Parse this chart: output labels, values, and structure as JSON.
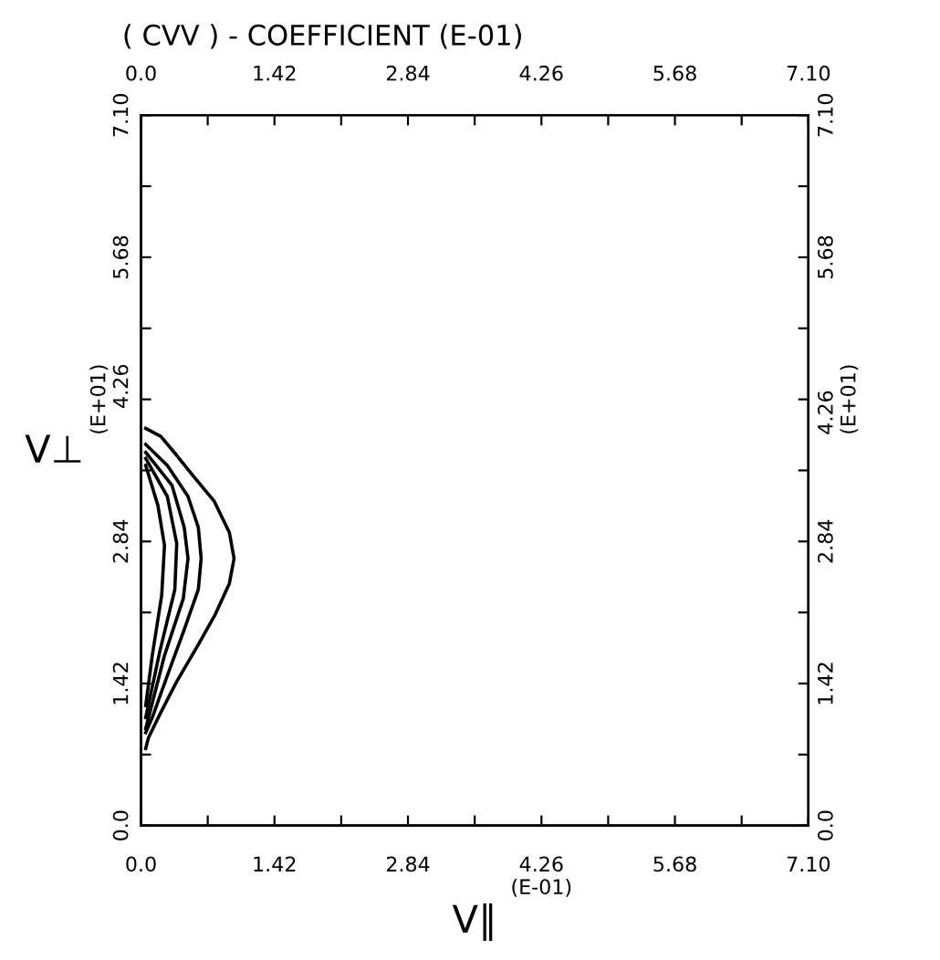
{
  "chart_data": {
    "type": "line",
    "title": "( CVV ) - COEFFICIENT (E-01)",
    "xlabel": "V∥",
    "ylabel": "V⊥",
    "xlim": [
      0,
      7.1
    ],
    "ylim": [
      0,
      7.1
    ],
    "x2lim": [
      0,
      7.1
    ],
    "y2lim": [
      0,
      7.1
    ],
    "xticks": [
      {
        "value": 0,
        "label": "0.0"
      },
      {
        "value": 0.71,
        "label": null
      },
      1.42,
      {
        "value": 2.13,
        "label": null
      },
      2.84,
      {
        "value": 3.55,
        "label": null
      },
      {
        "value": 4.26,
        "label": "4.26\n(E-01)"
      },
      {
        "value": 4.97,
        "label": null
      },
      5.68,
      {
        "value": 6.39,
        "label": null
      },
      {
        "value": 7.1,
        "label": "7.10"
      }
    ],
    "x2ticks": [
      {
        "value": 0,
        "label": "0.0"
      },
      {
        "value": 0.71,
        "label": null
      },
      1.42,
      {
        "value": 2.13,
        "label": null
      },
      2.84,
      {
        "value": 3.55,
        "label": null
      },
      4.26,
      {
        "value": 4.97,
        "label": null
      },
      5.68,
      {
        "value": 6.39,
        "label": null
      },
      {
        "value": 7.1,
        "label": "7.10"
      }
    ],
    "yticks": [
      {
        "value": 0,
        "label": "0.0"
      },
      {
        "value": 0.71,
        "label": null
      },
      1.42,
      {
        "value": 2.13,
        "label": null
      },
      2.84,
      {
        "value": 3.55,
        "label": null
      },
      {
        "value": 4.26,
        "label": "(E+01)\n4.26"
      },
      {
        "value": 4.97,
        "label": null
      },
      5.68,
      {
        "value": 6.39,
        "label": null
      },
      {
        "value": 7.1,
        "label": "7.10"
      }
    ],
    "y2ticks": [
      {
        "value": 0,
        "label": "0.0"
      },
      {
        "value": 0.71,
        "label": null
      },
      1.42,
      {
        "value": 2.13,
        "label": null
      },
      2.84,
      {
        "value": 3.55,
        "label": null
      },
      {
        "value": 4.26,
        "label": "4.26\n(E+01)"
      },
      {
        "value": 4.97,
        "label": null
      },
      5.68,
      {
        "value": 6.39,
        "label": null
      },
      {
        "value": 7.1,
        "label": "7.10"
      }
    ],
    "grid": false,
    "marker": "none",
    "line_style": "solid",
    "series": [
      {
        "color": "#000000",
        "x": [
          0.05,
          0.21,
          0.38,
          0.55,
          0.78,
          0.94,
          0.99,
          0.94,
          0.79,
          0.61,
          0.38,
          0.21,
          0.08,
          0.05
        ],
        "values": [
          3.97,
          3.89,
          3.7,
          3.5,
          3.24,
          2.93,
          2.67,
          2.42,
          2.11,
          1.81,
          1.44,
          1.13,
          0.88,
          0.77
        ]
      },
      {
        "color": "#000000",
        "x": [
          0.05,
          0.28,
          0.5,
          0.61,
          0.64,
          0.61,
          0.46,
          0.28,
          0.12,
          0.05
        ],
        "values": [
          3.81,
          3.6,
          3.29,
          2.98,
          2.67,
          2.36,
          1.96,
          1.5,
          1.08,
          0.93
        ]
      },
      {
        "color": "#000000",
        "x": [
          0.05,
          0.33,
          0.46,
          0.5,
          0.45,
          0.25,
          0.05
        ],
        "values": [
          3.73,
          3.4,
          2.98,
          2.67,
          2.27,
          1.7,
          0.97
        ]
      },
      {
        "color": "#000000",
        "x": [
          0.05,
          0.28,
          0.38,
          0.36,
          0.2,
          0.05
        ],
        "values": [
          3.67,
          3.29,
          2.82,
          2.36,
          1.74,
          1.08
        ]
      },
      {
        "color": "#000000",
        "x": [
          0.05,
          0.18,
          0.25,
          0.22,
          0.12,
          0.05
        ],
        "values": [
          3.6,
          3.2,
          2.8,
          2.3,
          1.7,
          1.2
        ]
      }
    ]
  }
}
